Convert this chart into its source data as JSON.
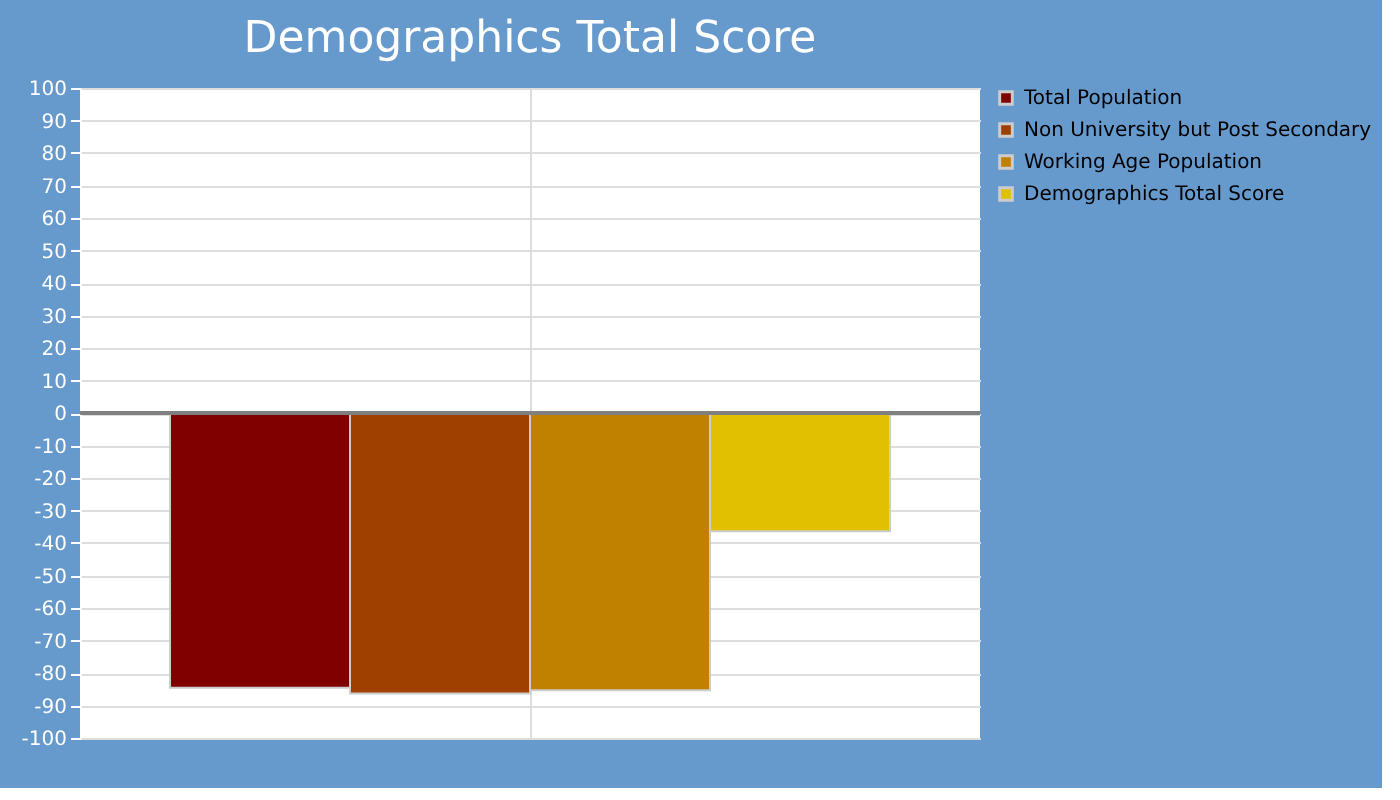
{
  "chart_data": {
    "type": "bar",
    "title": "Demographics Total Score",
    "categories": [
      null
    ],
    "series": [
      {
        "name": "Total Population",
        "color": "#800000",
        "values": [
          -84.5
        ]
      },
      {
        "name": "Non University but Post Secondary",
        "color": "#a04000",
        "values": [
          -86.3
        ]
      },
      {
        "name": "Working Age Population",
        "color": "#c08000",
        "values": [
          -85.3
        ]
      },
      {
        "name": "Demographics Total Score",
        "color": "#e0c000",
        "values": [
          -36.4
        ]
      }
    ],
    "ylim": [
      -100,
      100
    ],
    "yticks": [
      -100,
      -90,
      -80,
      -70,
      -60,
      -50,
      -40,
      -30,
      -20,
      -10,
      0,
      10,
      20,
      30,
      40,
      50,
      60,
      70,
      80,
      90,
      100
    ],
    "ref_lines": [
      {
        "axis": "y",
        "value": 0,
        "color": "#808080"
      }
    ],
    "grid": true,
    "legend": "top right",
    "tick_labels": "y"
  }
}
